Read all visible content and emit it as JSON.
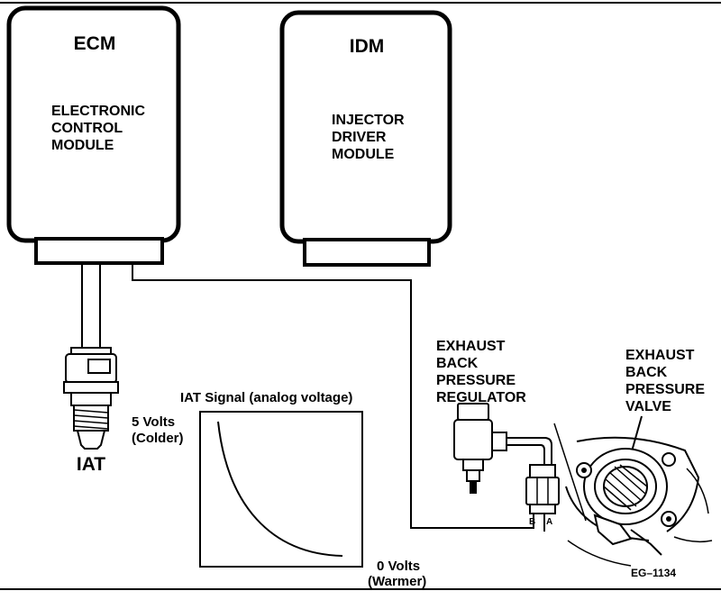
{
  "ecm": {
    "abbr": "ECM",
    "name_lines": [
      "ELECTRONIC",
      "CONTROL",
      "MODULE"
    ]
  },
  "idm": {
    "abbr": "IDM",
    "name_lines": [
      "INJECTOR",
      "DRIVER",
      "MODULE"
    ]
  },
  "iat_sensor": {
    "label": "IAT"
  },
  "iat_chart": {
    "title": "IAT Signal (analog voltage)",
    "top_label_lines": [
      "5 Volts",
      "(Colder)"
    ],
    "bottom_label_lines": [
      "0 Volts",
      "(Warmer)"
    ]
  },
  "regulator": {
    "label_lines": [
      "EXHAUST",
      "BACK",
      "PRESSURE",
      "REGULATOR"
    ],
    "pin_b": "B",
    "pin_a": "A"
  },
  "valve": {
    "label_lines": [
      "EXHAUST",
      "BACK",
      "PRESSURE",
      "VALVE"
    ]
  },
  "figure_code": "EG–1134",
  "colors": {
    "ink": "#000000",
    "paper": "#ffffff"
  }
}
